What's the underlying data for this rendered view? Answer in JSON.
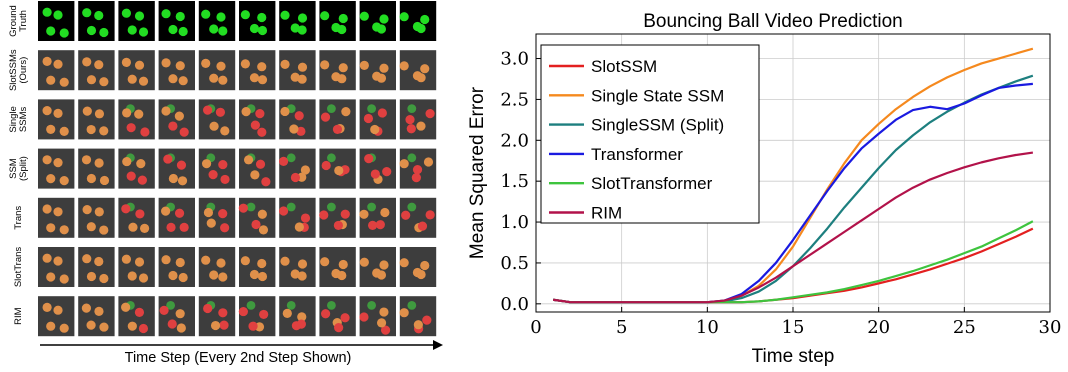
{
  "grid": {
    "rows": [
      {
        "lines": [
          "Ground",
          "Truth"
        ],
        "kind": "truth"
      },
      {
        "lines": [
          "SlotSSMs",
          "(Ours)"
        ],
        "kind": "ours"
      },
      {
        "lines": [
          "Single",
          "SSMs"
        ],
        "kind": "single"
      },
      {
        "lines": [
          "SSM",
          "(Split)"
        ],
        "kind": "split"
      },
      {
        "lines": [
          "Trans"
        ],
        "kind": "trans"
      },
      {
        "lines": [
          "SlotTrans"
        ],
        "kind": "slottrans"
      },
      {
        "lines": [
          "RIM"
        ],
        "kind": "rim"
      }
    ],
    "columns": 10,
    "time_label": "Time Step (Every 2nd Step Shown)",
    "colors": {
      "truth_bg": "#000000",
      "pred_bg": "#3d3d3d",
      "green": "#22dd22",
      "orange": "#e0904a",
      "red": "#e04040",
      "dark_green": "#3f9a3f"
    }
  },
  "chart_data": {
    "type": "line",
    "title": "Bouncing Ball Video Prediction",
    "xlabel": "Time step",
    "ylabel": "Mean Squared Error",
    "xlim": [
      0,
      30
    ],
    "ylim": [
      -0.1,
      3.3
    ],
    "xticks": [
      0,
      5,
      10,
      15,
      20,
      25,
      30
    ],
    "yticks": [
      0.0,
      0.5,
      1.0,
      1.5,
      2.0,
      2.5,
      3.0
    ],
    "grid": true,
    "legend_position": "top-left",
    "x": [
      1,
      2,
      3,
      4,
      5,
      6,
      7,
      8,
      9,
      10,
      11,
      12,
      13,
      14,
      15,
      16,
      17,
      18,
      19,
      20,
      21,
      22,
      23,
      24,
      25,
      26,
      27,
      28,
      29
    ],
    "series": [
      {
        "name": "SlotSSM",
        "color": "#e32020",
        "values": [
          0.05,
          0.02,
          0.02,
          0.02,
          0.02,
          0.02,
          0.02,
          0.02,
          0.02,
          0.02,
          0.02,
          0.02,
          0.03,
          0.05,
          0.07,
          0.1,
          0.13,
          0.16,
          0.2,
          0.25,
          0.3,
          0.36,
          0.42,
          0.49,
          0.56,
          0.64,
          0.73,
          0.82,
          0.92
        ]
      },
      {
        "name": "Single State SSM",
        "color": "#f5891e",
        "values": [
          0.05,
          0.02,
          0.02,
          0.02,
          0.02,
          0.02,
          0.02,
          0.02,
          0.02,
          0.02,
          0.04,
          0.1,
          0.22,
          0.42,
          0.7,
          1.05,
          1.4,
          1.72,
          2.0,
          2.2,
          2.38,
          2.53,
          2.66,
          2.77,
          2.86,
          2.94,
          3.0,
          3.06,
          3.12
        ]
      },
      {
        "name": "SingleSSM (Split)",
        "color": "#1d7f7f",
        "values": [
          0.05,
          0.02,
          0.02,
          0.02,
          0.02,
          0.02,
          0.02,
          0.02,
          0.02,
          0.02,
          0.03,
          0.07,
          0.15,
          0.28,
          0.46,
          0.68,
          0.92,
          1.18,
          1.42,
          1.66,
          1.88,
          2.06,
          2.22,
          2.35,
          2.46,
          2.56,
          2.64,
          2.72,
          2.79
        ]
      },
      {
        "name": "Transformer",
        "color": "#1a1ae0",
        "values": [
          0.05,
          0.02,
          0.02,
          0.02,
          0.02,
          0.02,
          0.02,
          0.02,
          0.02,
          0.02,
          0.04,
          0.12,
          0.28,
          0.5,
          0.78,
          1.08,
          1.38,
          1.66,
          1.9,
          2.08,
          2.25,
          2.37,
          2.41,
          2.38,
          2.45,
          2.55,
          2.64,
          2.67,
          2.69
        ]
      },
      {
        "name": "SlotTransformer",
        "color": "#3ec43e",
        "values": [
          0.05,
          0.02,
          0.02,
          0.02,
          0.02,
          0.02,
          0.02,
          0.02,
          0.02,
          0.02,
          0.02,
          0.02,
          0.03,
          0.05,
          0.08,
          0.11,
          0.14,
          0.18,
          0.23,
          0.28,
          0.34,
          0.4,
          0.47,
          0.54,
          0.62,
          0.7,
          0.8,
          0.9,
          1.01
        ]
      },
      {
        "name": "RIM",
        "color": "#b2124a",
        "values": [
          0.05,
          0.02,
          0.02,
          0.02,
          0.02,
          0.02,
          0.02,
          0.02,
          0.02,
          0.02,
          0.04,
          0.1,
          0.2,
          0.32,
          0.46,
          0.6,
          0.74,
          0.88,
          1.02,
          1.16,
          1.3,
          1.42,
          1.52,
          1.6,
          1.67,
          1.73,
          1.78,
          1.82,
          1.85
        ]
      }
    ]
  }
}
